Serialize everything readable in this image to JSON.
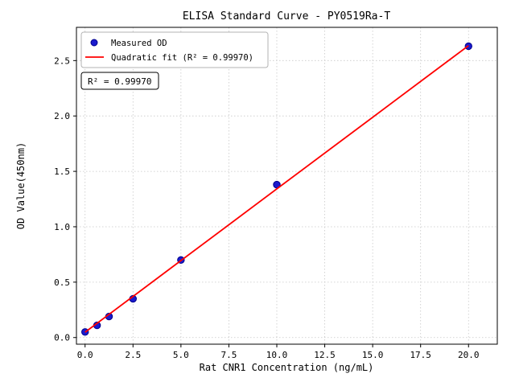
{
  "chart_data": {
    "type": "scatter",
    "title": "ELISA Standard Curve - PY0519Ra-T",
    "xlabel": "Rat CNR1 Concentration (ng/mL)",
    "ylabel": "OD Value(450nm)",
    "xlim": [
      -0.45,
      21.5
    ],
    "ylim": [
      -0.06,
      2.8
    ],
    "x_ticks": [
      0.0,
      2.5,
      5.0,
      7.5,
      10.0,
      12.5,
      15.0,
      17.5,
      20.0
    ],
    "y_ticks": [
      0.0,
      0.5,
      1.0,
      1.5,
      2.0,
      2.5
    ],
    "grid": true,
    "legend_position": "upper-left",
    "annotation": "R² = 0.99970",
    "series": [
      {
        "name": "Measured OD",
        "type": "scatter",
        "color": "#1a1acd",
        "edge_color": "#00008b",
        "x": [
          0,
          0.625,
          1.25,
          2.5,
          5,
          10,
          20
        ],
        "y": [
          0.05,
          0.11,
          0.19,
          0.35,
          0.7,
          1.38,
          2.63
        ]
      },
      {
        "name": "Quadratic fit (R² = 0.99970)",
        "type": "line",
        "color": "#ff0000",
        "x": [
          0,
          2.5,
          5,
          7.5,
          10,
          12.5,
          15,
          17.5,
          20
        ],
        "y": [
          0.048,
          0.371,
          0.695,
          1.018,
          1.342,
          1.665,
          1.988,
          2.312,
          2.635
        ]
      }
    ]
  }
}
